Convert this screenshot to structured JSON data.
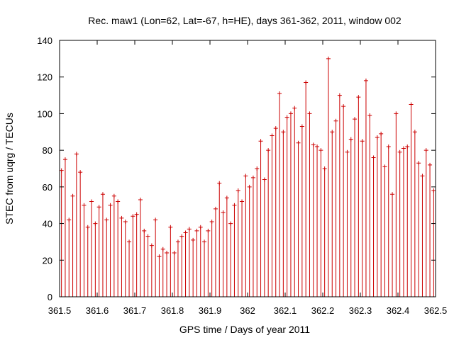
{
  "chart_data": {
    "type": "scatter",
    "title": "Rec. maw1 (Lon=62, Lat=-67, h=HE), days 361-362, 2011, window 002",
    "xlabel": "GPS time / Days of year 2011",
    "ylabel": "STEC from uqrg / TECUs",
    "xlim": [
      361.5,
      362.5
    ],
    "ylim": [
      0,
      140
    ],
    "xticks": [
      361.5,
      361.6,
      361.7,
      361.8,
      361.9,
      362,
      362.1,
      362.2,
      362.3,
      362.4,
      362.5
    ],
    "xtick_labels": [
      "361.5",
      "361.6",
      "361.7",
      "361.8",
      "361.9",
      "362",
      "362.1",
      "362.2",
      "362.3",
      "362.4",
      "362.5"
    ],
    "yticks": [
      0,
      20,
      40,
      60,
      80,
      100,
      120,
      140
    ],
    "ytick_labels": [
      "0",
      "20",
      "40",
      "60",
      "80",
      "100",
      "120",
      "140"
    ],
    "grid": false,
    "series": [
      {
        "name": "STEC",
        "color": "#cc0000",
        "style": "impulses with cross markers",
        "x": [
          361.505,
          361.515,
          361.525,
          361.535,
          361.545,
          361.555,
          361.565,
          361.575,
          361.585,
          361.595,
          361.605,
          361.615,
          361.625,
          361.635,
          361.645,
          361.655,
          361.665,
          361.675,
          361.685,
          361.695,
          361.705,
          361.715,
          361.725,
          361.735,
          361.745,
          361.755,
          361.765,
          361.775,
          361.785,
          361.795,
          361.805,
          361.815,
          361.825,
          361.835,
          361.845,
          361.855,
          361.865,
          361.875,
          361.885,
          361.895,
          361.905,
          361.915,
          361.925,
          361.935,
          361.945,
          361.955,
          361.965,
          361.975,
          361.985,
          361.995,
          362.005,
          362.015,
          362.025,
          362.035,
          362.045,
          362.055,
          362.065,
          362.075,
          362.085,
          362.095,
          362.105,
          362.115,
          362.125,
          362.135,
          362.145,
          362.155,
          362.165,
          362.175,
          362.185,
          362.195,
          362.205,
          362.215,
          362.225,
          362.235,
          362.245,
          362.255,
          362.265,
          362.275,
          362.285,
          362.295,
          362.305,
          362.315,
          362.325,
          362.335,
          362.345,
          362.355,
          362.365,
          362.375,
          362.385,
          362.395,
          362.405,
          362.415,
          362.425,
          362.435,
          362.445,
          362.455,
          362.465,
          362.475,
          362.485,
          362.495
        ],
        "y": [
          69,
          75,
          42,
          55,
          78,
          68,
          50,
          38,
          52,
          40,
          49,
          56,
          42,
          50,
          55,
          52,
          43,
          41,
          30,
          44,
          45,
          53,
          36,
          33,
          28,
          42,
          22,
          26,
          24,
          38,
          24,
          30,
          33,
          35,
          37,
          31,
          36,
          38,
          30,
          36,
          41,
          48,
          62,
          46,
          54,
          40,
          50,
          58,
          52,
          66,
          60,
          65,
          70,
          85,
          64,
          80,
          88,
          92,
          111,
          90,
          98,
          100,
          103,
          84,
          93,
          117,
          100,
          83,
          82,
          80,
          70,
          130,
          90,
          96,
          110,
          104,
          79,
          86,
          97,
          109,
          85,
          118,
          99,
          76,
          87,
          89,
          71,
          82,
          56,
          100,
          79,
          81,
          82,
          105,
          90,
          73,
          66,
          80,
          72,
          58
        ]
      }
    ]
  }
}
